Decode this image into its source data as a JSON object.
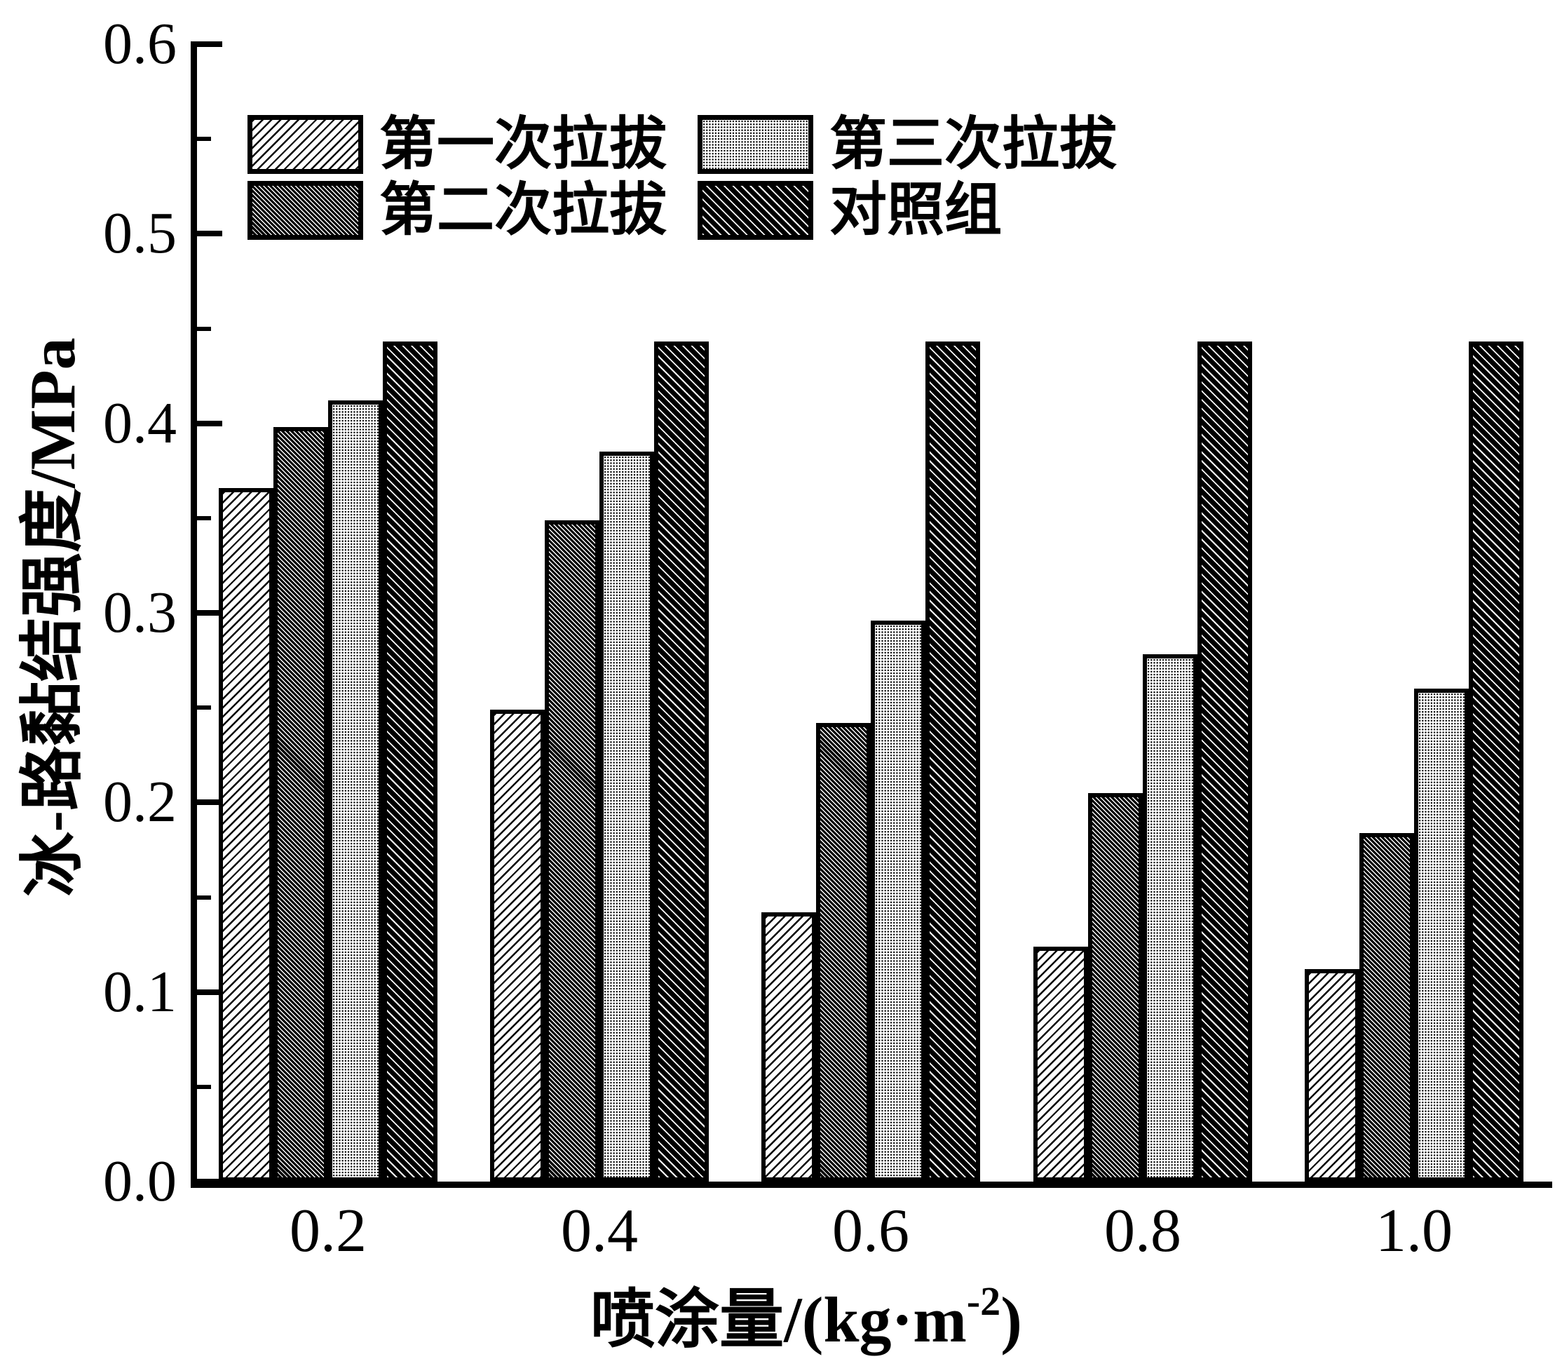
{
  "figure": {
    "background": "#ffffff",
    "ink": "#000000"
  },
  "chart_data": {
    "type": "bar",
    "title": "",
    "categories": [
      "0.2",
      "0.4",
      "0.6",
      "0.8",
      "1.0"
    ],
    "series": [
      {
        "name": "第一次拉拔",
        "pattern": "light-forward-diagonal-hatch",
        "values": [
          0.366,
          0.249,
          0.142,
          0.124,
          0.112
        ]
      },
      {
        "name": "第二次拉拔",
        "pattern": "dense-dark-back-diagonal-hatch",
        "values": [
          0.398,
          0.349,
          0.242,
          0.205,
          0.184
        ]
      },
      {
        "name": "第三次拉拔",
        "pattern": "fine-dot-halftone",
        "values": [
          0.412,
          0.385,
          0.296,
          0.278,
          0.26
        ]
      },
      {
        "name": "对照组",
        "pattern": "wide-dark-back-diagonal-hatch",
        "values": [
          0.443,
          0.443,
          0.443,
          0.443,
          0.443
        ]
      }
    ],
    "xlabel": {
      "prefix": "喷涂量/(kg·m",
      "sup": "-2",
      "suffix": ")"
    },
    "ylabel": "冰-路黏结强度/MPa",
    "ylim": [
      0,
      0.6
    ],
    "y_major_tick_labels": [
      "0.0",
      "0.1",
      "0.2",
      "0.3",
      "0.4",
      "0.5",
      "0.6"
    ],
    "y_minor_tick_step": 0.05,
    "bar_outline": "#000000",
    "grid": false,
    "legend": {
      "position": "top-left-inside",
      "display_order": [
        0,
        2,
        1,
        3
      ]
    }
  }
}
